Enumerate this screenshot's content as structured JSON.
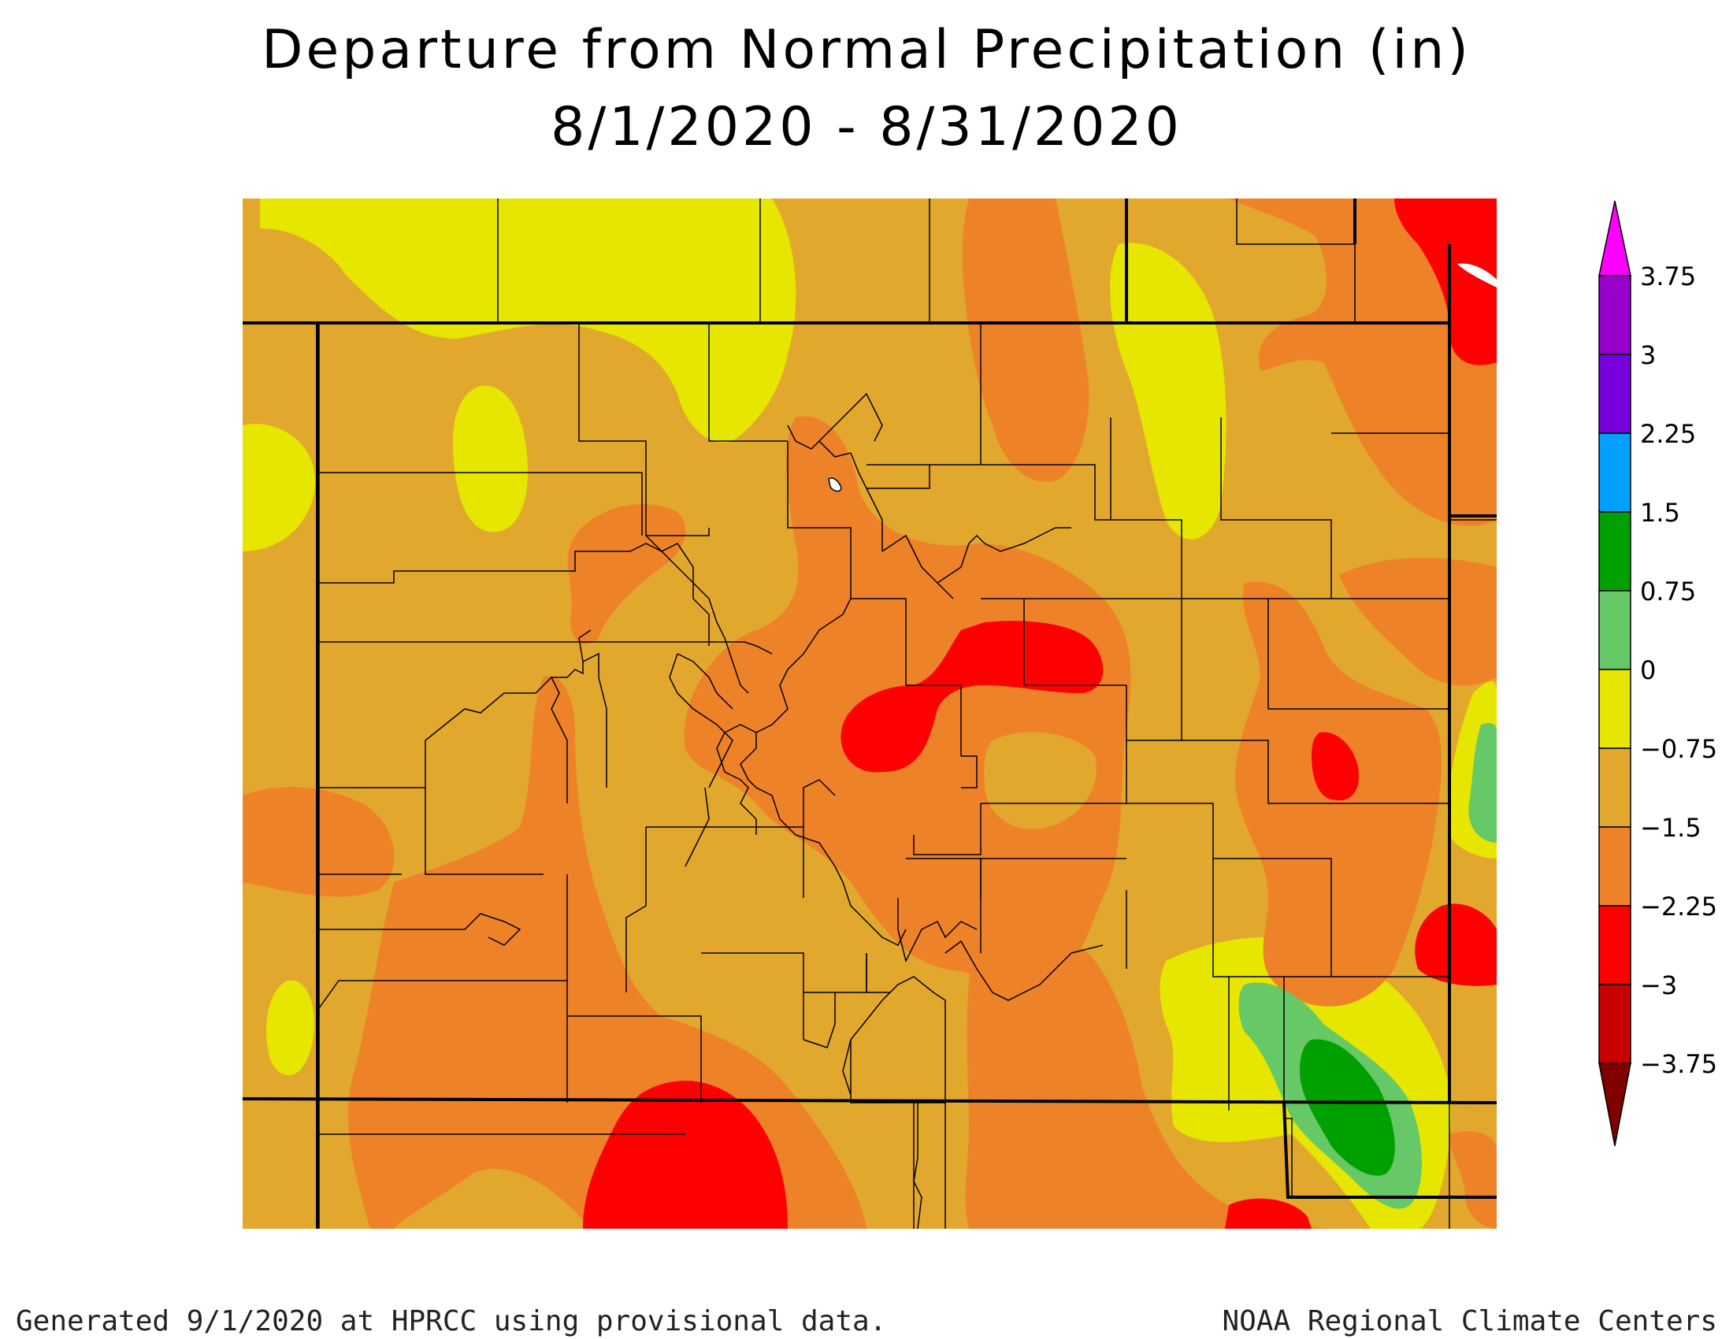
{
  "title": "Departure from Normal Precipitation (in)",
  "subtitle": "8/1/2020 - 8/31/2020",
  "legend": {
    "colors": {
      "above_3_75": "#ff00ff",
      "3_to_3_75": "#9900cc",
      "2_25_to_3": "#7700dd",
      "1_5_to_2_25": "#00a0ff",
      "0_75_to_1_5": "#00a000",
      "0_to_0_75": "#66c866",
      "m0_75_to_0": "#e6e600",
      "m1_5_to_m0_75": "#e2a82e",
      "m2_25_to_m1_5": "#ee8228",
      "m3_to_m2_25": "#ff0000",
      "m3_75_to_m3": "#c80000",
      "below_m3_75": "#800000"
    },
    "labels": [
      "3.75",
      "3",
      "2.25",
      "1.5",
      "0.75",
      "0",
      "−0.75",
      "−1.5",
      "−2.25",
      "−3",
      "−3.75"
    ]
  },
  "footer_left": "Generated 9/1/2020 at HPRCC using provisional data.",
  "footer_right": "NOAA Regional Climate Centers"
}
